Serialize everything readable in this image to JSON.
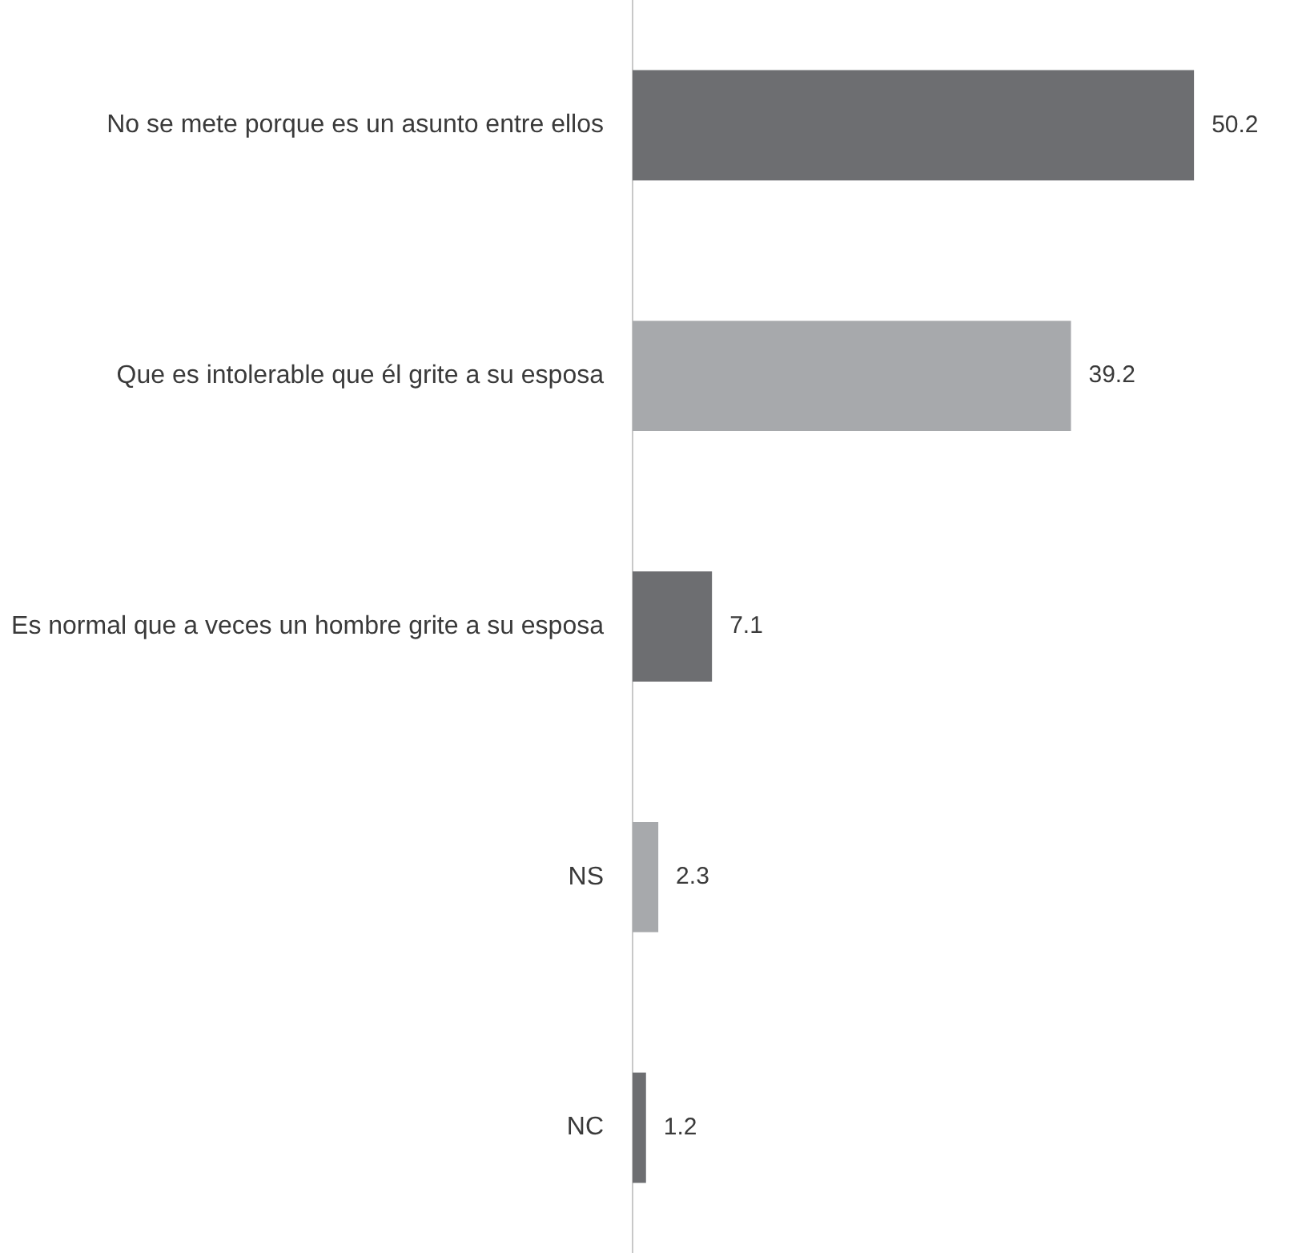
{
  "chart_data": {
    "type": "bar",
    "orientation": "horizontal",
    "categories": [
      "No se mete porque es un asunto entre ellos",
      "Que es intolerable que él grite a su esposa",
      "Es normal que a veces un hombre grite a su esposa",
      "NS",
      "NC"
    ],
    "values": [
      50.2,
      39.2,
      7.1,
      2.3,
      1.2
    ],
    "colors": [
      "#6d6e71",
      "#a7a9ac",
      "#6d6e71",
      "#a7a9ac",
      "#6d6e71"
    ],
    "tick_labels": "y",
    "data_labels": true
  }
}
